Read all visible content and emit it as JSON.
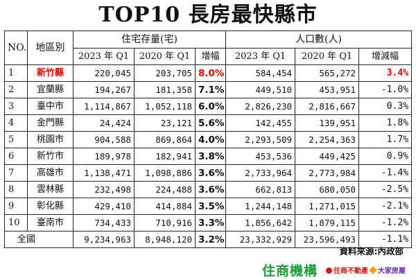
{
  "title": "TOP10 長房最快縣市",
  "headers": {
    "no": "NO.",
    "region": "地區別",
    "housing_group": "住宅存量(宅)",
    "population_group": "人口數(人)",
    "h_2023": "2023 年 Q1",
    "h_2020": "2020 年 Q1",
    "h_growth": "增幅",
    "p_2023": "2023 年 Q1",
    "p_2020": "2020 年 Q1",
    "p_change": "增減幅"
  },
  "rows": [
    {
      "no": "1",
      "region": "新竹縣",
      "h2023": "220,045",
      "h2020": "203,705",
      "growth": "8.0%",
      "p2023": "584,454",
      "p2020": "565,272",
      "pchange": "3.4%"
    },
    {
      "no": "2",
      "region": "宜蘭縣",
      "h2023": "194,267",
      "h2020": "181,358",
      "growth": "7.1%",
      "p2023": "449,510",
      "p2020": "453,951",
      "pchange": "-1.0%"
    },
    {
      "no": "3",
      "region": "臺中市",
      "h2023": "1,114,867",
      "h2020": "1,052,118",
      "growth": "6.0%",
      "p2023": "2,826,230",
      "p2020": "2,816,667",
      "pchange": "0.3%"
    },
    {
      "no": "4",
      "region": "金門縣",
      "h2023": "24,424",
      "h2020": "23,121",
      "growth": "5.6%",
      "p2023": "142,455",
      "p2020": "139,951",
      "pchange": "1.8%"
    },
    {
      "no": "5",
      "region": "桃園市",
      "h2023": "904,588",
      "h2020": "869,864",
      "growth": "4.0%",
      "p2023": "2,293,509",
      "p2020": "2,254,363",
      "pchange": "1.7%"
    },
    {
      "no": "6",
      "region": "新竹市",
      "h2023": "189,978",
      "h2020": "182,941",
      "growth": "3.8%",
      "p2023": "453,536",
      "p2020": "449,425",
      "pchange": "0.9%"
    },
    {
      "no": "7",
      "region": "高雄市",
      "h2023": "1,138,471",
      "h2020": "1,098,886",
      "growth": "3.6%",
      "p2023": "2,733,964",
      "p2020": "2,773,984",
      "pchange": "-1.4%"
    },
    {
      "no": "8",
      "region": "雲林縣",
      "h2023": "232,498",
      "h2020": "224,488",
      "growth": "3.6%",
      "p2023": "662,813",
      "p2020": "680,050",
      "pchange": "-2.5%"
    },
    {
      "no": "9",
      "region": "彰化縣",
      "h2023": "429,410",
      "h2020": "414,884",
      "growth": "3.5%",
      "p2023": "1,244,148",
      "p2020": "1,271,015",
      "pchange": "-2.1%"
    },
    {
      "no": "10",
      "region": "臺南市",
      "h2023": "734,433",
      "h2020": "710,916",
      "growth": "3.3%",
      "p2023": "1,856,642",
      "p2020": "1,879,115",
      "pchange": "-1.2%"
    }
  ],
  "total": {
    "label": "全國",
    "h2023": "9,234,963",
    "h2020": "8,948,120",
    "growth": "3.2%",
    "p2023": "23,332,929",
    "p2020": "23,596,493",
    "pchange": "-1.1%"
  },
  "source": "資料來源:內政部",
  "brands": {
    "primary": "住商機構",
    "secondary": "住商不動產",
    "tertiary": "大家房屋"
  },
  "colors": {
    "highlight": "#e00000",
    "brand_green": "#1f9b3a",
    "brand_red": "#d11a1a",
    "brand_purple": "#6a2aa3"
  }
}
